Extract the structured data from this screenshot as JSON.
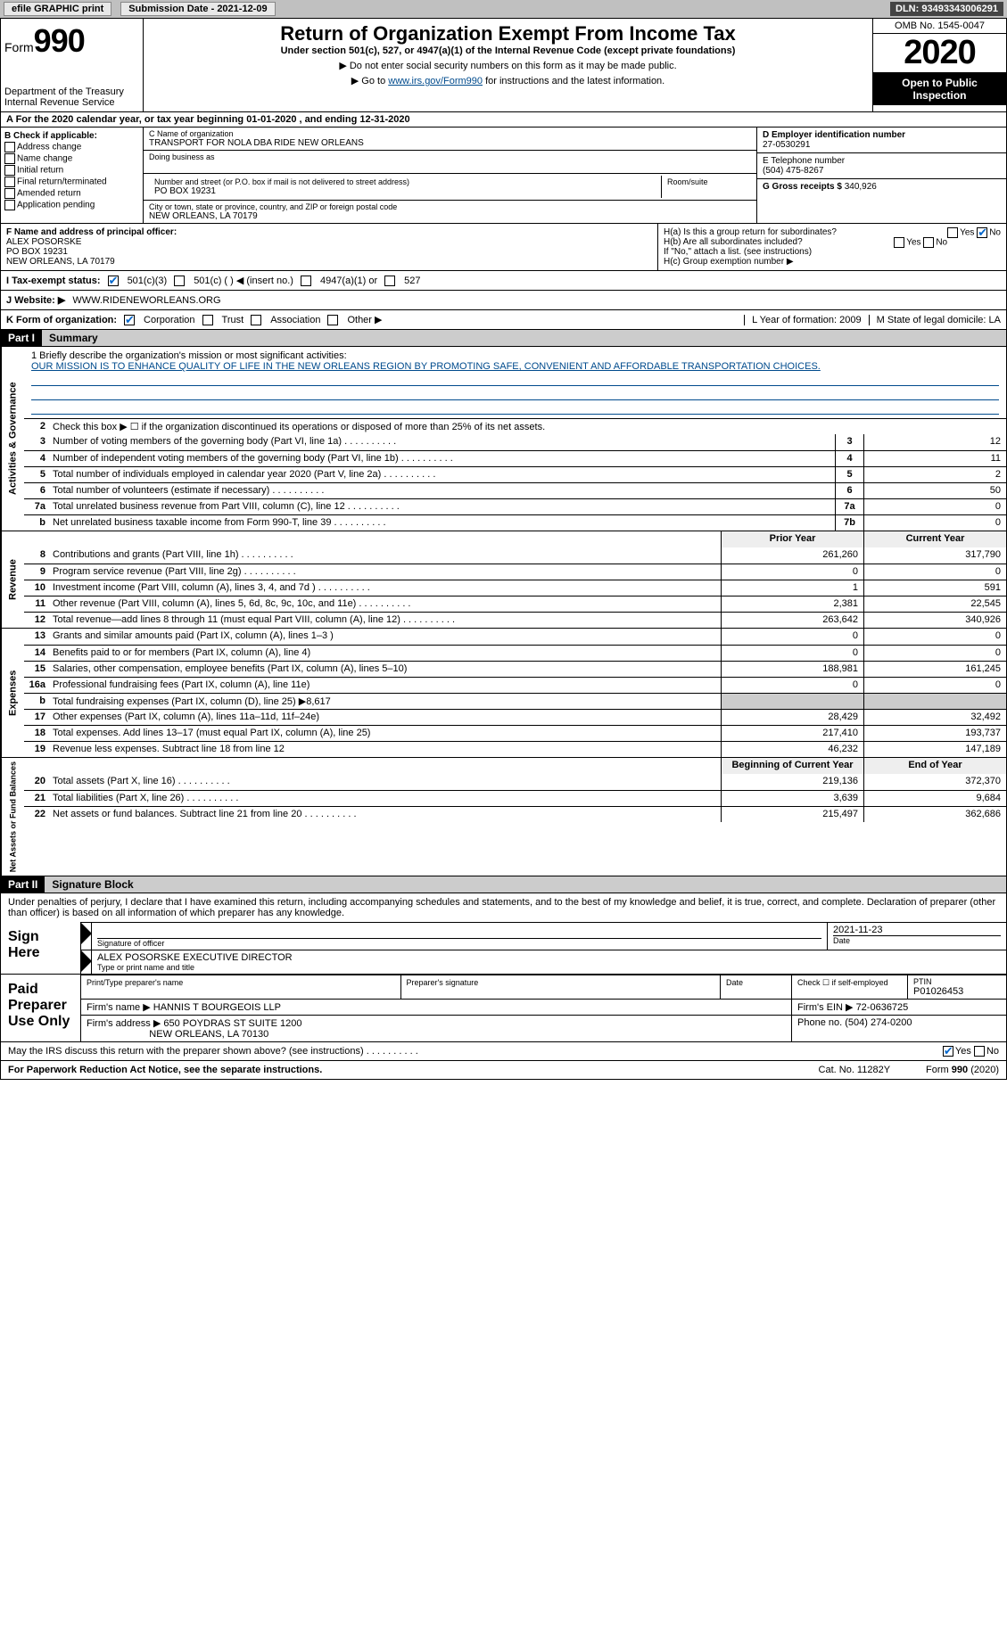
{
  "topbar": {
    "efile": "efile GRAPHIC print",
    "submission_label": "Submission Date - 2021-12-09",
    "dln": "DLN: 93493343006291"
  },
  "header": {
    "form_label": "Form",
    "form_number": "990",
    "dept1": "Department of the Treasury",
    "dept2": "Internal Revenue Service",
    "title": "Return of Organization Exempt From Income Tax",
    "subtitle": "Under section 501(c), 527, or 4947(a)(1) of the Internal Revenue Code (except private foundations)",
    "arrow1": "▶ Do not enter social security numbers on this form as it may be made public.",
    "arrow2_pre": "▶ Go to ",
    "arrow2_link": "www.irs.gov/Form990",
    "arrow2_post": " for instructions and the latest information.",
    "omb": "OMB No. 1545-0047",
    "year": "2020",
    "open_public": "Open to Public Inspection"
  },
  "period": "A For the 2020 calendar year, or tax year beginning 01-01-2020   , and ending 12-31-2020",
  "boxB": {
    "title": "B Check if applicable:",
    "opts": [
      "Address change",
      "Name change",
      "Initial return",
      "Final return/terminated",
      "Amended return",
      "Application pending"
    ]
  },
  "boxC": {
    "name_label": "C Name of organization",
    "name": "TRANSPORT FOR NOLA DBA RIDE NEW ORLEANS",
    "dba_label": "Doing business as",
    "street_label": "Number and street (or P.O. box if mail is not delivered to street address)",
    "room_label": "Room/suite",
    "street": "PO BOX 19231",
    "city_label": "City or town, state or province, country, and ZIP or foreign postal code",
    "city": "NEW ORLEANS, LA  70179"
  },
  "boxD": {
    "label": "D Employer identification number",
    "value": "27-0530291"
  },
  "boxE": {
    "label": "E Telephone number",
    "value": "(504) 475-8267"
  },
  "boxG": {
    "label": "G Gross receipts $",
    "value": "340,926"
  },
  "boxF": {
    "label": "F  Name and address of principal officer:",
    "name": "ALEX POSORSKE",
    "addr1": "PO BOX 19231",
    "addr2": "NEW ORLEANS, LA  70179"
  },
  "boxH": {
    "a": "H(a)  Is this a group return for subordinates?",
    "a_no_checked": true,
    "b": "H(b)  Are all subordinates included?",
    "note": "If \"No,\" attach a list. (see instructions)",
    "c": "H(c)  Group exemption number ▶"
  },
  "boxI": {
    "label": "I  Tax-exempt status:",
    "opt5013": "501(c)(3)",
    "opt501c": "501(c) (  ) ◀ (insert no.)",
    "opt4947": "4947(a)(1) or",
    "opt527": "527"
  },
  "boxJ": {
    "label": "J  Website: ▶",
    "value": "WWW.RIDENEWORLEANS.ORG"
  },
  "boxK": {
    "label": "K Form of organization:",
    "corp": "Corporation",
    "trust": "Trust",
    "assoc": "Association",
    "other": "Other ▶"
  },
  "boxL": {
    "label": "L Year of formation: 2009"
  },
  "boxM": {
    "label": "M State of legal domicile: LA"
  },
  "part1": {
    "tag": "Part I",
    "title": "Summary"
  },
  "mission": {
    "q": "1  Briefly describe the organization's mission or most significant activities:",
    "text": "OUR MISSION IS TO ENHANCE QUALITY OF LIFE IN THE NEW ORLEANS REGION BY PROMOTING SAFE, CONVENIENT AND AFFORDABLE TRANSPORTATION CHOICES."
  },
  "governance": {
    "label": "Activities & Governance",
    "line2": "Check this box ▶ ☐  if the organization discontinued its operations or disposed of more than 25% of its net assets.",
    "rows": [
      {
        "n": "3",
        "d": "Number of voting members of the governing body (Part VI, line 1a)",
        "box": "3",
        "v": "12"
      },
      {
        "n": "4",
        "d": "Number of independent voting members of the governing body (Part VI, line 1b)",
        "box": "4",
        "v": "11"
      },
      {
        "n": "5",
        "d": "Total number of individuals employed in calendar year 2020 (Part V, line 2a)",
        "box": "5",
        "v": "2"
      },
      {
        "n": "6",
        "d": "Total number of volunteers (estimate if necessary)",
        "box": "6",
        "v": "50"
      },
      {
        "n": "7a",
        "d": "Total unrelated business revenue from Part VIII, column (C), line 12",
        "box": "7a",
        "v": "0"
      },
      {
        "n": "b",
        "d": "Net unrelated business taxable income from Form 990-T, line 39",
        "box": "7b",
        "v": "0"
      }
    ]
  },
  "cols": {
    "prior": "Prior Year",
    "current": "Current Year",
    "begin": "Beginning of Current Year",
    "end": "End of Year"
  },
  "revenue": {
    "label": "Revenue",
    "rows": [
      {
        "n": "8",
        "d": "Contributions and grants (Part VIII, line 1h)",
        "p": "261,260",
        "c": "317,790"
      },
      {
        "n": "9",
        "d": "Program service revenue (Part VIII, line 2g)",
        "p": "0",
        "c": "0"
      },
      {
        "n": "10",
        "d": "Investment income (Part VIII, column (A), lines 3, 4, and 7d )",
        "p": "1",
        "c": "591"
      },
      {
        "n": "11",
        "d": "Other revenue (Part VIII, column (A), lines 5, 6d, 8c, 9c, 10c, and 11e)",
        "p": "2,381",
        "c": "22,545"
      },
      {
        "n": "12",
        "d": "Total revenue—add lines 8 through 11 (must equal Part VIII, column (A), line 12)",
        "p": "263,642",
        "c": "340,926"
      }
    ]
  },
  "expenses": {
    "label": "Expenses",
    "rows": [
      {
        "n": "13",
        "d": "Grants and similar amounts paid (Part IX, column (A), lines 1–3 )",
        "p": "0",
        "c": "0"
      },
      {
        "n": "14",
        "d": "Benefits paid to or for members (Part IX, column (A), line 4)",
        "p": "0",
        "c": "0"
      },
      {
        "n": "15",
        "d": "Salaries, other compensation, employee benefits (Part IX, column (A), lines 5–10)",
        "p": "188,981",
        "c": "161,245"
      },
      {
        "n": "16a",
        "d": "Professional fundraising fees (Part IX, column (A), line 11e)",
        "p": "0",
        "c": "0"
      },
      {
        "n": "b",
        "d": "Total fundraising expenses (Part IX, column (D), line 25) ▶8,617",
        "p": "",
        "c": "",
        "shaded": true
      },
      {
        "n": "17",
        "d": "Other expenses (Part IX, column (A), lines 11a–11d, 11f–24e)",
        "p": "28,429",
        "c": "32,492"
      },
      {
        "n": "18",
        "d": "Total expenses. Add lines 13–17 (must equal Part IX, column (A), line 25)",
        "p": "217,410",
        "c": "193,737"
      },
      {
        "n": "19",
        "d": "Revenue less expenses. Subtract line 18 from line 12",
        "p": "46,232",
        "c": "147,189"
      }
    ]
  },
  "netassets": {
    "label": "Net Assets or Fund Balances",
    "rows": [
      {
        "n": "20",
        "d": "Total assets (Part X, line 16)",
        "p": "219,136",
        "c": "372,370"
      },
      {
        "n": "21",
        "d": "Total liabilities (Part X, line 26)",
        "p": "3,639",
        "c": "9,684"
      },
      {
        "n": "22",
        "d": "Net assets or fund balances. Subtract line 21 from line 20",
        "p": "215,497",
        "c": "362,686"
      }
    ]
  },
  "part2": {
    "tag": "Part II",
    "title": "Signature Block"
  },
  "sig": {
    "intro": "Under penalties of perjury, I declare that I have examined this return, including accompanying schedules and statements, and to the best of my knowledge and belief, it is true, correct, and complete. Declaration of preparer (other than officer) is based on all information of which preparer has any knowledge.",
    "sign_here": "Sign Here",
    "officer_sig": "Signature of officer",
    "date_label": "Date",
    "date": "2021-11-23",
    "officer_name": "ALEX POSORSKE  EXECUTIVE DIRECTOR",
    "type_name": "Type or print name and title",
    "paid": "Paid Preparer Use Only",
    "prep_name_label": "Print/Type preparer's name",
    "prep_sig_label": "Preparer's signature",
    "prep_date": "Date",
    "check_self": "Check ☐ if self-employed",
    "ptin_label": "PTIN",
    "ptin": "P01026453",
    "firm_name_label": "Firm's name   ▶",
    "firm_name": "HANNIS T BOURGEOIS LLP",
    "firm_ein_label": "Firm's EIN ▶",
    "firm_ein": "72-0636725",
    "firm_addr_label": "Firm's address ▶",
    "firm_addr": "650 POYDRAS ST SUITE 1200",
    "firm_city": "NEW ORLEANS, LA  70130",
    "phone_label": "Phone no.",
    "phone": "(504) 274-0200",
    "discuss": "May the IRS discuss this return with the preparer shown above? (see instructions)",
    "yes": "Yes",
    "no": "No"
  },
  "footer": {
    "pra": "For Paperwork Reduction Act Notice, see the separate instructions.",
    "cat": "Cat. No. 11282Y",
    "form": "Form 990 (2020)"
  }
}
